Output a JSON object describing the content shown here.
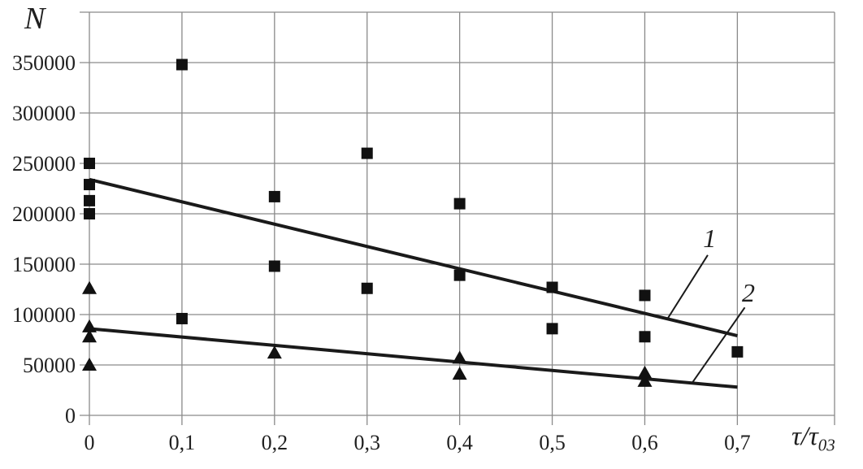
{
  "chart_data": {
    "type": "scatter",
    "y_axis_title": "N",
    "x_axis_title": "τ/τ",
    "x_axis_title_subscript": "03",
    "xlim": [
      0,
      0.805
    ],
    "ylim": [
      0,
      400000
    ],
    "grid": true,
    "grid_color": "#8a8a8a",
    "marker_color": "#111111",
    "trend_color": "#1a1a1a",
    "x_gridlines": [
      {
        "value": 0.0,
        "label": "0"
      },
      {
        "value": 0.1,
        "label": "0,1"
      },
      {
        "value": 0.2,
        "label": "0,2"
      },
      {
        "value": 0.3,
        "label": "0,3"
      },
      {
        "value": 0.4,
        "label": "0,4"
      },
      {
        "value": 0.5,
        "label": "0,5"
      },
      {
        "value": 0.6,
        "label": "0,6"
      },
      {
        "value": 0.7,
        "label": "0,7"
      },
      {
        "value": 0.805,
        "label": ""
      }
    ],
    "y_gridlines": [
      {
        "value": 0,
        "label": "0"
      },
      {
        "value": 50000,
        "label": "50000"
      },
      {
        "value": 100000,
        "label": "100000"
      },
      {
        "value": 150000,
        "label": "150000"
      },
      {
        "value": 200000,
        "label": "200000"
      },
      {
        "value": 250000,
        "label": "250000"
      },
      {
        "value": 300000,
        "label": "300000"
      },
      {
        "value": 350000,
        "label": "350000"
      },
      {
        "value": 400000,
        "label": ""
      }
    ],
    "series": [
      {
        "name": "1",
        "marker": "square",
        "points": [
          [
            0,
            250000
          ],
          [
            0,
            229000
          ],
          [
            0,
            213000
          ],
          [
            0,
            200000
          ],
          [
            0.1,
            348000
          ],
          [
            0.1,
            96000
          ],
          [
            0.2,
            217000
          ],
          [
            0.2,
            148000
          ],
          [
            0.3,
            260000
          ],
          [
            0.3,
            126000
          ],
          [
            0.4,
            210000
          ],
          [
            0.4,
            139000
          ],
          [
            0.5,
            127000
          ],
          [
            0.5,
            86000
          ],
          [
            0.6,
            119000
          ],
          [
            0.6,
            78000
          ],
          [
            0.7,
            63000
          ]
        ]
      },
      {
        "name": "2",
        "marker": "triangle",
        "points": [
          [
            0,
            126000
          ],
          [
            0,
            88000
          ],
          [
            0,
            78000
          ],
          [
            0,
            50000
          ],
          [
            0.2,
            62000
          ],
          [
            0.4,
            57000
          ],
          [
            0.4,
            41000
          ],
          [
            0.6,
            42000
          ],
          [
            0.6,
            34000
          ]
        ]
      }
    ],
    "trendlines": [
      {
        "name": "1",
        "start": {
          "x": 0,
          "y": 234000
        },
        "end": {
          "x": 0.7,
          "y": 79000
        }
      },
      {
        "name": "2",
        "start": {
          "x": 0,
          "y": 86000
        },
        "end": {
          "x": 0.7,
          "y": 28000
        }
      }
    ],
    "annotations": [
      {
        "text": "1",
        "text_x": 0.67,
        "text_y": 176000,
        "leader": {
          "x1": 0.668,
          "y1": 159000,
          "x2": 0.625,
          "y2": 96500
        }
      },
      {
        "text": "2",
        "text_x": 0.712,
        "text_y": 122000,
        "leader": {
          "x1": 0.708,
          "y1": 107000,
          "x2": 0.651,
          "y2": 32000
        }
      }
    ]
  }
}
